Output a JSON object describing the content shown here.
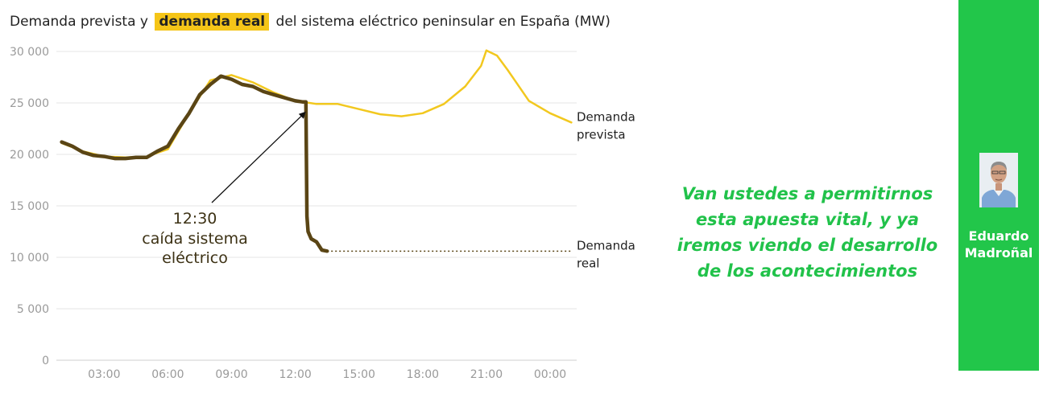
{
  "title": {
    "before": "Demanda prevista y",
    "highlight": "demanda real",
    "after": "del sistema eléctrico peninsular en España (MW)"
  },
  "chart_data": {
    "type": "line",
    "title": "Demanda prevista y demanda real del sistema eléctrico peninsular en España (MW)",
    "xlabel": "",
    "ylabel": "",
    "ylim": [
      0,
      30000
    ],
    "xlim": [
      "00:45",
      "25:15"
    ],
    "y_ticks": [
      "30 000",
      "25 000",
      "20 000",
      "15 000",
      "10 000",
      "5 000",
      "0"
    ],
    "x_ticks": [
      "03:00",
      "06:00",
      "09:00",
      "12:00",
      "15:00",
      "18:00",
      "21:00",
      "00:00"
    ],
    "grid": "horizontal",
    "series": [
      {
        "name": "Demanda prevista",
        "color": "#f2c81f",
        "x": [
          "01:00",
          "02:00",
          "03:00",
          "04:00",
          "05:00",
          "06:00",
          "07:00",
          "08:00",
          "09:00",
          "10:00",
          "11:00",
          "12:00",
          "13:00",
          "14:00",
          "15:00",
          "16:00",
          "17:00",
          "18:00",
          "19:00",
          "20:00",
          "20:45",
          "21:00",
          "21:30",
          "22:00",
          "23:00",
          "00:00",
          "01:00"
        ],
        "values": [
          21100,
          20300,
          19800,
          19700,
          19800,
          20500,
          24000,
          27200,
          27700,
          27000,
          26000,
          25200,
          24900,
          24900,
          24400,
          23900,
          23700,
          24000,
          24900,
          26600,
          28600,
          30100,
          29600,
          28200,
          25200,
          24000,
          23100
        ]
      },
      {
        "name": "Demanda real",
        "color": "#5a4515",
        "x": [
          "01:00",
          "01:30",
          "02:00",
          "02:30",
          "03:00",
          "03:30",
          "04:00",
          "04:30",
          "05:00",
          "05:30",
          "06:00",
          "06:30",
          "07:00",
          "07:30",
          "08:00",
          "08:30",
          "09:00",
          "09:30",
          "10:00",
          "10:30",
          "11:00",
          "11:30",
          "12:00",
          "12:20",
          "12:30",
          "12:33",
          "12:36",
          "12:45",
          "13:00",
          "13:15",
          "13:30"
        ],
        "values": [
          21200,
          20800,
          20200,
          19900,
          19800,
          19600,
          19600,
          19700,
          19700,
          20300,
          20800,
          22500,
          24000,
          25800,
          26800,
          27600,
          27300,
          26800,
          26600,
          26100,
          25800,
          25500,
          25200,
          25100,
          25100,
          14000,
          12500,
          11800,
          11500,
          10700,
          10600
        ]
      }
    ],
    "projection": {
      "name": "Demanda real",
      "style": "dotted",
      "from": "13:30",
      "to": "01:00",
      "value": 10600
    },
    "annotation": {
      "time": "12:30",
      "label": "caída sistema",
      "label2": "eléctrico",
      "points_to": "12:30"
    },
    "legend_labels": [
      {
        "line1": "Demanda",
        "line2": "prevista"
      },
      {
        "line1": "Demanda",
        "line2": "real"
      }
    ]
  },
  "quote": [
    "Van ustedes a permitirnos",
    "esta apuesta vital, y ya",
    "iremos viendo el desarrollo",
    "de los acontecimientos"
  ],
  "author": {
    "first": "Eduardo",
    "last": "Madroñal"
  },
  "colors": {
    "sidebar": "#22c64a",
    "quote": "#21c24a",
    "highlight": "#f5c518",
    "grid": "#e6e6e6"
  }
}
